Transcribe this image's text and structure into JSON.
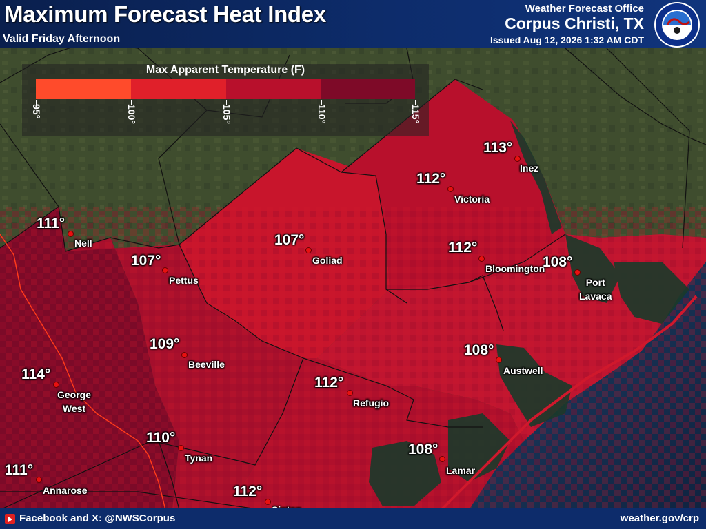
{
  "header": {
    "title": "Maximum Forecast Heat Index",
    "subtitle": "Valid Friday Afternoon",
    "office_line1": "Weather Forecast Office",
    "office_line2": "Corpus Christi, TX",
    "issued": "Issued Aug 12, 2026 1:32 AM CDT",
    "logo_text": "NATIONAL WEATHER SERVICE"
  },
  "legend": {
    "title": "Max Apparent Temperature (F)",
    "ticks": [
      "95°",
      "100°",
      "105°",
      "110°",
      "115°"
    ],
    "colors": [
      "#ff4b2b",
      "#e0202a",
      "#b8102c",
      "#7e0a28"
    ]
  },
  "locations": [
    {
      "value": "113°",
      "name": "Inez"
    },
    {
      "value": "112°",
      "name": "Victoria"
    },
    {
      "value": "111°",
      "name": "Nell"
    },
    {
      "value": "107°",
      "name": "Goliad"
    },
    {
      "value": "107°",
      "name": "Pettus"
    },
    {
      "value": "112°",
      "name": "Bloomington"
    },
    {
      "value": "108°",
      "name": "Port\nLavaca"
    },
    {
      "value": "109°",
      "name": "Beeville"
    },
    {
      "value": "108°",
      "name": "Austwell"
    },
    {
      "value": "114°",
      "name": "George\nWest"
    },
    {
      "value": "112°",
      "name": "Refugio"
    },
    {
      "value": "110°",
      "name": "Tynan"
    },
    {
      "value": "108°",
      "name": "Lamar"
    },
    {
      "value": "111°",
      "name": "Annarose"
    },
    {
      "value": "112°",
      "name": "Sinton"
    }
  ],
  "footer": {
    "social": "Facebook and X: @NWSCorpus",
    "url": "weather.gov/crp"
  },
  "colors": {
    "header_bg": "#0d2c6b",
    "land_bg": "#3b4a2c",
    "water": "#1e3a5c"
  }
}
